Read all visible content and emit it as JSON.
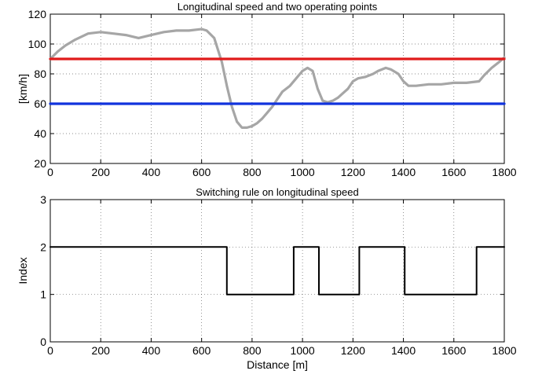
{
  "chart_data": [
    {
      "type": "line",
      "title": "Longitudinal speed and two operating points",
      "xlabel": "",
      "ylabel": "[km/h]",
      "xlim": [
        0,
        1800
      ],
      "ylim": [
        20,
        120
      ],
      "xticks": [
        0,
        200,
        400,
        600,
        800,
        1000,
        1200,
        1400,
        1600,
        1800
      ],
      "yticks": [
        20,
        40,
        60,
        80,
        100,
        120
      ],
      "grid": true,
      "series": [
        {
          "color": "#a6a6a6",
          "x": [
            0,
            30,
            60,
            100,
            150,
            200,
            250,
            300,
            350,
            400,
            450,
            500,
            550,
            600,
            620,
            650,
            680,
            700,
            720,
            740,
            760,
            780,
            800,
            820,
            840,
            860,
            880,
            900,
            920,
            950,
            980,
            1000,
            1020,
            1040,
            1060,
            1080,
            1100,
            1120,
            1140,
            1160,
            1180,
            1200,
            1220,
            1250,
            1280,
            1300,
            1330,
            1350,
            1380,
            1400,
            1420,
            1450,
            1500,
            1550,
            1600,
            1650,
            1700,
            1720,
            1750,
            1780,
            1800
          ],
          "y": [
            90,
            95,
            99,
            103,
            107,
            108,
            107,
            106,
            104,
            106,
            108,
            109,
            109,
            110,
            109,
            104,
            88,
            72,
            58,
            48,
            44,
            44,
            45,
            47,
            50,
            54,
            58,
            63,
            68,
            72,
            78,
            82,
            84,
            82,
            70,
            62,
            61,
            62,
            64,
            67,
            70,
            75,
            77,
            78,
            80,
            82,
            84,
            83,
            80,
            75,
            72,
            72,
            73,
            73,
            74,
            74,
            75,
            79,
            84,
            88,
            91
          ]
        },
        {
          "color": "#e01b1b",
          "x": [
            0,
            1800
          ],
          "y": [
            90,
            90
          ]
        },
        {
          "color": "#1133dd",
          "x": [
            0,
            1800
          ],
          "y": [
            60,
            60
          ]
        }
      ]
    },
    {
      "type": "line",
      "title": "Switching rule on longitudinal speed",
      "xlabel": "Distance [m]",
      "ylabel": "Index",
      "xlim": [
        0,
        1800
      ],
      "ylim": [
        0,
        3
      ],
      "xticks": [
        0,
        200,
        400,
        600,
        800,
        1000,
        1200,
        1400,
        1600,
        1800
      ],
      "yticks": [
        0,
        1,
        2,
        3
      ],
      "grid": true,
      "series": [
        {
          "color": "#000000",
          "step": true,
          "x": [
            0,
            700,
            700,
            965,
            965,
            1065,
            1065,
            1225,
            1225,
            1405,
            1405,
            1690,
            1690,
            1800
          ],
          "y": [
            2,
            2,
            1,
            1,
            2,
            2,
            1,
            1,
            2,
            2,
            1,
            1,
            2,
            2
          ]
        }
      ]
    }
  ]
}
